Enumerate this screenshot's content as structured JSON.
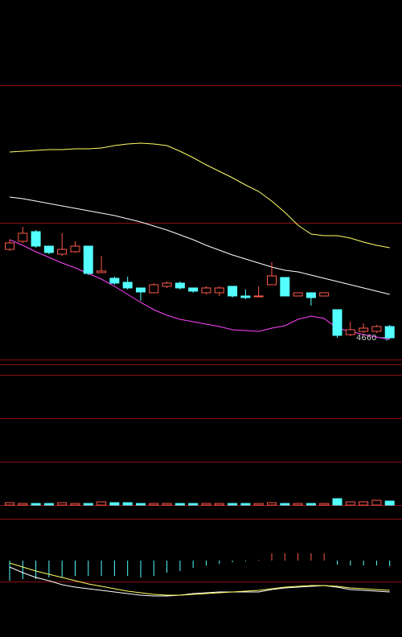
{
  "chart_data": [
    {
      "type": "candlestick",
      "up_color": "#ff5a4a",
      "down_color": "#54ffff",
      "ylim": [
        4600,
        5290
      ],
      "annotation": 4660,
      "open": [
        4880,
        4900,
        4924,
        4888,
        4868,
        4874,
        4888,
        4822,
        4808,
        4798,
        4784,
        4772,
        4788,
        4796,
        4784,
        4772,
        4772,
        4788,
        4764,
        4764,
        4792,
        4810,
        4764,
        4772,
        4764,
        4730,
        4668,
        4676,
        4676,
        4688
      ],
      "close": [
        4896,
        4920,
        4888,
        4872,
        4880,
        4888,
        4820,
        4826,
        4796,
        4784,
        4774,
        4792,
        4796,
        4784,
        4776,
        4784,
        4784,
        4764,
        4760,
        4764,
        4814,
        4764,
        4772,
        4760,
        4772,
        4666,
        4680,
        4684,
        4688,
        4660
      ],
      "high": [
        4904,
        4936,
        4928,
        4888,
        4920,
        4900,
        4888,
        4864,
        4812,
        4812,
        4784,
        4796,
        4800,
        4800,
        4784,
        4788,
        4788,
        4788,
        4780,
        4788,
        4848,
        4810,
        4772,
        4772,
        4772,
        4730,
        4700,
        4696,
        4692,
        4692
      ],
      "low": [
        4876,
        4896,
        4884,
        4868,
        4864,
        4872,
        4816,
        4822,
        4792,
        4780,
        4752,
        4772,
        4784,
        4780,
        4772,
        4768,
        4764,
        4760,
        4756,
        4764,
        4792,
        4764,
        4764,
        4740,
        4764,
        4660,
        4664,
        4672,
        4672,
        4660
      ],
      "series": [
        {
          "color": "#ffff66",
          "values": [
            5122,
            5124,
            5126,
            5128,
            5128,
            5130,
            5130,
            5132,
            5138,
            5142,
            5144,
            5142,
            5138,
            5124,
            5108,
            5090,
            5074,
            5058,
            5040,
            5024,
            5000,
            4972,
            4940,
            4918,
            4914,
            4914,
            4908,
            4898,
            4890,
            4884
          ]
        },
        {
          "color": "#ffffff",
          "values": [
            5010,
            5006,
            5000,
            4994,
            4988,
            4982,
            4976,
            4970,
            4964,
            4956,
            4948,
            4938,
            4928,
            4916,
            4904,
            4890,
            4878,
            4866,
            4856,
            4846,
            4836,
            4828,
            4824,
            4816,
            4808,
            4800,
            4792,
            4784,
            4776,
            4768
          ]
        },
        {
          "color": "#ff44ff",
          "values": [
            4904,
            4890,
            4874,
            4860,
            4846,
            4834,
            4820,
            4806,
            4788,
            4768,
            4748,
            4730,
            4716,
            4706,
            4700,
            4694,
            4688,
            4680,
            4678,
            4676,
            4684,
            4690,
            4706,
            4714,
            4708,
            4684,
            4676,
            4668,
            4662,
            4656
          ]
        }
      ]
    },
    {
      "type": "volume",
      "ylim": [
        0,
        162
      ],
      "values": [
        3,
        2,
        2,
        2,
        3,
        2,
        2,
        4,
        3,
        3,
        2,
        2,
        2,
        2,
        2,
        2,
        2,
        2,
        2,
        2,
        3,
        2,
        2,
        2,
        2,
        8,
        4,
        4,
        6,
        5
      ]
    },
    {
      "type": "macd",
      "ylim": [
        -60,
        20
      ],
      "up_color": "#ff5a4a",
      "down_color": "#54ffff",
      "values": [
        -25,
        -23,
        -23,
        -21,
        -21,
        -19,
        -19,
        -19,
        -19,
        -19,
        -21,
        -19,
        -15,
        -13,
        -9,
        -6,
        -4,
        -2,
        -1,
        1,
        9,
        9,
        9,
        9,
        9,
        -5,
        -6,
        -6,
        -6,
        -7
      ],
      "series": [
        {
          "color": "#ffffff",
          "values": [
            -8,
            -15,
            -21,
            -25,
            -30,
            -33,
            -35,
            -37,
            -39,
            -41,
            -43,
            -44,
            -44,
            -43,
            -41,
            -40,
            -39,
            -39,
            -39,
            -39,
            -36,
            -34,
            -33,
            -32,
            -31,
            -33,
            -36,
            -37,
            -38,
            -39
          ]
        },
        {
          "color": "#ffff66",
          "values": [
            -3,
            -8,
            -13,
            -17,
            -21,
            -25,
            -29,
            -32,
            -35,
            -38,
            -40,
            -42,
            -43,
            -43,
            -42,
            -41,
            -40,
            -39,
            -38,
            -37,
            -35,
            -33,
            -32,
            -31,
            -31,
            -32,
            -34,
            -35,
            -36,
            -37
          ]
        }
      ]
    }
  ]
}
